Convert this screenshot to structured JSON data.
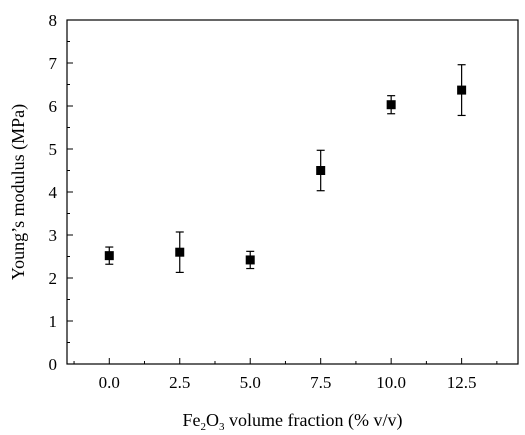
{
  "chart_data": {
    "type": "scatter",
    "title": "",
    "xlabel": "Fe₂O₃ volume fraction (% v/v)",
    "xlabel_parts": {
      "prefix": "Fe",
      "sub1": "2",
      "mid": "O",
      "sub2": "3",
      "suffix": " volume fraction (% v/v)"
    },
    "ylabel": "Young’s modulus (MPa)",
    "xlim": [
      -1.5,
      14.5
    ],
    "ylim": [
      0,
      8
    ],
    "xticks": [
      0.0,
      2.5,
      5.0,
      7.5,
      10.0,
      12.5
    ],
    "xtick_labels": [
      "0.0",
      "2.5",
      "5.0",
      "7.5",
      "10.0",
      "12.5"
    ],
    "yticks": [
      0,
      1,
      2,
      3,
      4,
      5,
      6,
      7,
      8
    ],
    "ytick_labels": [
      "0",
      "1",
      "2",
      "3",
      "4",
      "5",
      "6",
      "7",
      "8"
    ],
    "grid": false,
    "marker": "square",
    "marker_color": "#000000",
    "series": [
      {
        "x": [
          0.0,
          2.5,
          5.0,
          7.5,
          10.0,
          12.5
        ],
        "y": [
          2.52,
          2.6,
          2.42,
          4.5,
          6.03,
          6.37
        ],
        "y_err_low": [
          2.32,
          2.13,
          2.22,
          4.03,
          5.82,
          5.78
        ],
        "y_err_high": [
          2.72,
          3.07,
          2.62,
          4.97,
          6.24,
          6.96
        ]
      }
    ]
  }
}
